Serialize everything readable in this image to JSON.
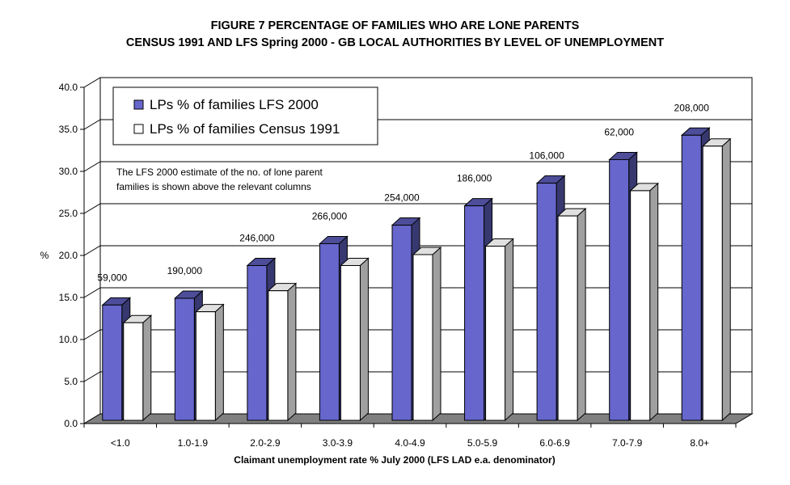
{
  "chart_data": {
    "type": "bar",
    "title": "FIGURE 7   PERCENTAGE OF FAMILIES WHO ARE LONE PARENTS",
    "subtitle": "CENSUS 1991 AND LFS Spring 2000 - GB LOCAL AUTHORITIES  BY LEVEL OF UNEMPLOYMENT",
    "xlabel": "Claimant unemployment rate % July 2000 (LFS LAD e.a. denominator)",
    "ylabel": "%",
    "ylim": [
      0,
      40
    ],
    "yticks": [
      "0.0",
      "5.0",
      "10.0",
      "15.0",
      "20.0",
      "25.0",
      "30.0",
      "35.0",
      "40.0"
    ],
    "grid": true,
    "legend_position": "top-left",
    "categories": [
      "<1.0",
      "1.0-1.9",
      "2.0-2.9",
      "3.0-3.9",
      "4.0-4.9",
      "5.0-5.9",
      "6.0-6.9",
      "7.0-7.9",
      "8.0+"
    ],
    "series": [
      {
        "name": "LPs % of families LFS 2000",
        "color": "#6666cc",
        "values": [
          14.1,
          14.9,
          18.8,
          21.4,
          23.6,
          25.9,
          28.6,
          31.4,
          34.3
        ]
      },
      {
        "name": "LPs % of families Census 1991",
        "color": "#ffffff",
        "values": [
          12.0,
          13.3,
          15.8,
          18.8,
          20.1,
          21.1,
          24.7,
          27.7,
          33.0
        ]
      }
    ],
    "data_labels": [
      "59,000",
      "190,000",
      "246,000",
      "266,000",
      "254,000",
      "186,000",
      "106,000",
      "62,000",
      "208,000"
    ],
    "annotation": [
      "The LFS 2000 estimate of the no.  of lone parent",
      "families is shown above the relevant columns"
    ]
  }
}
